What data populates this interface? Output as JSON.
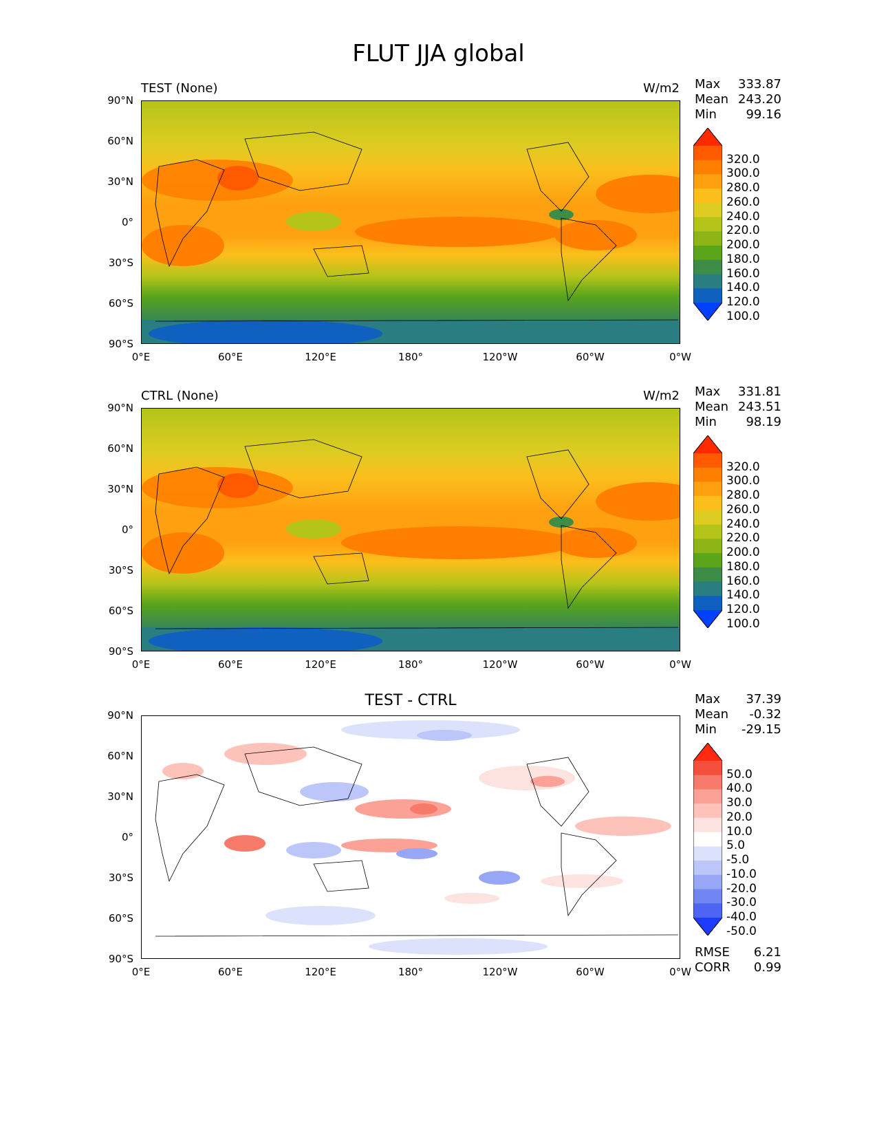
{
  "suptitle": "FLUT JJA global",
  "axes": {
    "lat_ticks": [
      "90°N",
      "60°N",
      "30°N",
      "0°",
      "30°S",
      "60°S",
      "90°S"
    ],
    "lon_ticks": [
      "0°E",
      "60°E",
      "120°E",
      "180°",
      "120°W",
      "60°W",
      "0°W"
    ]
  },
  "panels": [
    {
      "id": "test",
      "left_title": "TEST (None)",
      "center_title": "",
      "units": "W/m2",
      "stats": [
        {
          "label": "Max",
          "value": "333.87"
        },
        {
          "label": "Mean",
          "value": "243.20"
        },
        {
          "label": "Min",
          "value": "99.16"
        }
      ],
      "colorbar_labels": [
        "320.0",
        "300.0",
        "280.0",
        "260.0",
        "240.0",
        "220.0",
        "200.0",
        "180.0",
        "160.0",
        "140.0",
        "120.0",
        "100.0"
      ],
      "colorbar_colors": [
        "#ff2a00",
        "#ff5a00",
        "#ff8000",
        "#ffa010",
        "#fbbf1c",
        "#ddcc22",
        "#b4c419",
        "#8db516",
        "#5aa51a",
        "#3d8c48",
        "#2a7d80",
        "#1060c0",
        "#0040ff"
      ],
      "extra_stats": []
    },
    {
      "id": "ctrl",
      "left_title": "CTRL (None)",
      "center_title": "",
      "units": "W/m2",
      "stats": [
        {
          "label": "Max",
          "value": "331.81"
        },
        {
          "label": "Mean",
          "value": "243.51"
        },
        {
          "label": "Min",
          "value": "98.19"
        }
      ],
      "colorbar_labels": [
        "320.0",
        "300.0",
        "280.0",
        "260.0",
        "240.0",
        "220.0",
        "200.0",
        "180.0",
        "160.0",
        "140.0",
        "120.0",
        "100.0"
      ],
      "colorbar_colors": [
        "#ff2a00",
        "#ff5a00",
        "#ff8000",
        "#ffa010",
        "#fbbf1c",
        "#ddcc22",
        "#b4c419",
        "#8db516",
        "#5aa51a",
        "#3d8c48",
        "#2a7d80",
        "#1060c0",
        "#0040ff"
      ],
      "extra_stats": []
    },
    {
      "id": "diff",
      "left_title": "",
      "center_title": "TEST - CTRL",
      "units": "",
      "stats": [
        {
          "label": "Max",
          "value": "37.39"
        },
        {
          "label": "Mean",
          "value": "-0.32"
        },
        {
          "label": "Min",
          "value": "-29.15"
        }
      ],
      "colorbar_labels": [
        "50.0",
        "40.0",
        "30.0",
        "20.0",
        "10.0",
        "5.0",
        "-5.0",
        "-10.0",
        "-20.0",
        "-30.0",
        "-40.0",
        "-50.0"
      ],
      "colorbar_colors": [
        "#ff2a10",
        "#f4503c",
        "#f87a6a",
        "#fca196",
        "#fdc3bb",
        "#fde3df",
        "#ffffff",
        "#dce2fb",
        "#bcc6f8",
        "#97a6f5",
        "#7286f3",
        "#4d65f2",
        "#1e3cff"
      ],
      "extra_stats": [
        {
          "label": "RMSE",
          "value": "6.21"
        },
        {
          "label": "CORR",
          "value": "0.99"
        }
      ]
    }
  ]
}
